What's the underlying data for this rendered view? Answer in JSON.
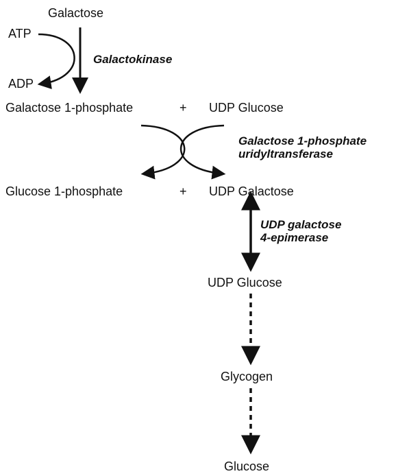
{
  "metabolites": {
    "galactose": "Galactose",
    "atp": "ATP",
    "adp": "ADP",
    "galactose_1_phosphate": "Galactose 1-phosphate",
    "plus_1": "+",
    "udp_glucose_1": "UDP Glucose",
    "glucose_1_phosphate": "Glucose 1-phosphate",
    "plus_2": "+",
    "udp_galactose": "UDP Galactose",
    "udp_glucose_2": "UDP Glucose",
    "glycogen": "Glycogen",
    "glucose": "Glucose"
  },
  "enzymes": {
    "galactokinase": "Galactokinase",
    "uridyltransferase_line1": "Galactose 1-phosphate",
    "uridyltransferase_line2": "uridyltransferase",
    "epimerase_line1": "UDP galactose",
    "epimerase_line2": "4-epimerase"
  },
  "colors": {
    "ink": "#111111",
    "background": "#ffffff"
  }
}
